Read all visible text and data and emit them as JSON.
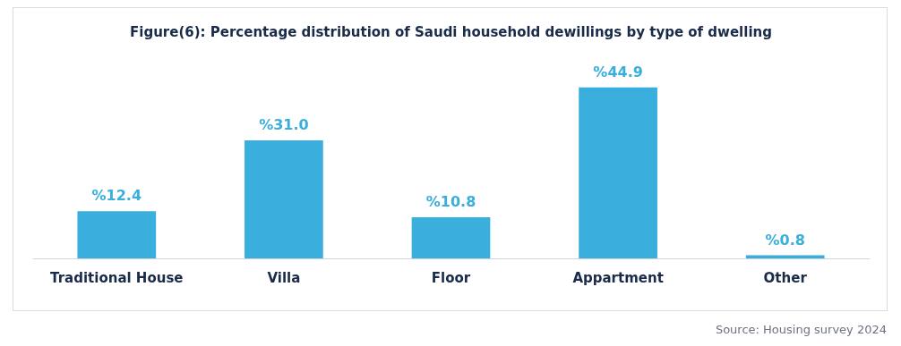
{
  "chart_data": {
    "type": "bar",
    "title": "Figure(6): Percentage distribution of Saudi household dewillings by type of dwelling",
    "categories": [
      "Traditional House",
      "Villa",
      "Floor",
      "Appartment",
      "Other"
    ],
    "values": [
      12.4,
      31.0,
      10.8,
      44.9,
      0.8
    ],
    "value_labels": [
      "%12.4",
      "%31.0",
      "%10.8",
      "%44.9",
      "%0.8"
    ],
    "color": "#3aaedc",
    "grid": false,
    "legend": false,
    "annotations": [
      "Source: Housing survey 2024"
    ]
  }
}
